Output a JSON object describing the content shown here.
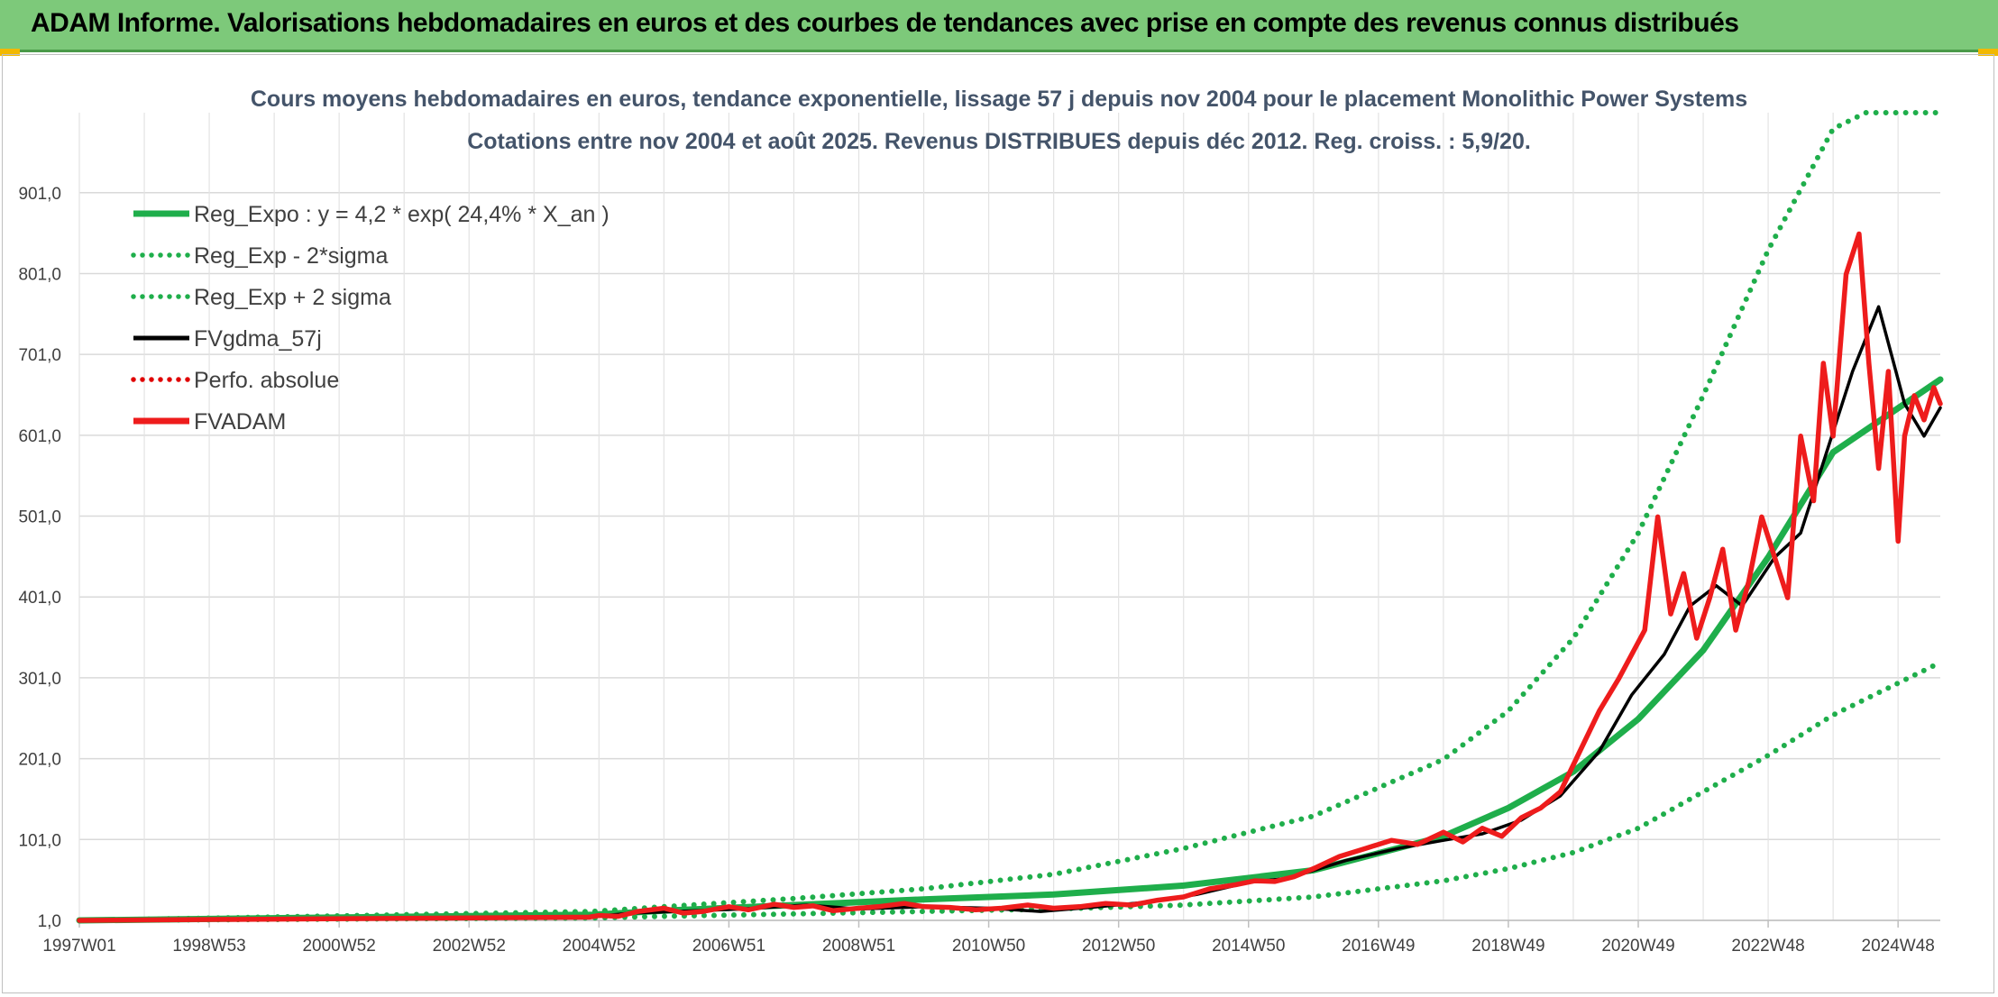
{
  "banner": {
    "title": "ADAM Informe. Valorisations hebdomadaires en euros et des courbes de tendances avec prise en compte des revenus connus distribués",
    "background": "#7dc97a"
  },
  "chart_data": {
    "type": "line",
    "title": "Cours moyens hebdomadaires en euros, tendance exponentielle, lissage 57 j depuis nov 2004 pour le placement Monolithic Power Systems",
    "subtitle": "Cotations entre nov 2004 et août 2025. Revenus DISTRIBUES depuis déc 2012. Reg. croiss. : 5,9/20.",
    "x_ticks": [
      "1997W01",
      "1998W53",
      "2000W52",
      "2002W52",
      "2004W52",
      "2006W51",
      "2008W51",
      "2010W50",
      "2012W50",
      "2014W50",
      "2016W49",
      "2018W49",
      "2020W49",
      "2022W48",
      "2024W48"
    ],
    "x_range": [
      1997.0,
      2025.65
    ],
    "y_ticks": [
      "1,0",
      "101,0",
      "201,0",
      "301,0",
      "401,0",
      "501,0",
      "601,0",
      "701,0",
      "801,0",
      "901,0"
    ],
    "ylim": [
      1,
      1000
    ],
    "grid": true,
    "legend_position": "top-left",
    "legend": [
      {
        "label": "Reg_Expo : y = 4,2 * exp( 24,4% *  X_an )",
        "color": "#1fae4b",
        "style": "solid"
      },
      {
        "label": "Reg_Exp - 2*sigma",
        "color": "#1fae4b",
        "style": "dotted"
      },
      {
        "label": "Reg_Exp + 2 sigma",
        "color": "#1fae4b",
        "style": "dotted"
      },
      {
        "label": "FVgdma_57j",
        "color": "#000000",
        "style": "solid"
      },
      {
        "label": "Perfo. absolue",
        "color": "#e00000",
        "style": "dotted"
      },
      {
        "label": "FVADAM",
        "color": "#ee1c1c",
        "style": "solid"
      }
    ],
    "series": [
      {
        "name": "Reg_Expo : y = 4,2 * exp( 24,4% *  X_an )",
        "x": [
          1997.0,
          2004.9,
          2006,
          2008,
          2010,
          2012,
          2014,
          2016,
          2018,
          2019,
          2020,
          2021,
          2022,
          2023,
          2024,
          2025.65
        ],
        "values": [
          1,
          8,
          13,
          20,
          27,
          33,
          44,
          63,
          105,
          140,
          185,
          250,
          335,
          450,
          580,
          670
        ]
      },
      {
        "name": "Reg_Exp - 2*sigma",
        "x": [
          1997.0,
          2004.9,
          2006,
          2008,
          2010,
          2012,
          2014,
          2016,
          2018,
          2019,
          2020,
          2021,
          2022,
          2023,
          2024,
          2025.65
        ],
        "values": [
          1,
          4,
          6,
          9,
          12,
          15,
          20,
          30,
          50,
          65,
          85,
          115,
          160,
          205,
          255,
          320
        ]
      },
      {
        "name": "Reg_Exp + 2 sigma",
        "x": [
          1997.0,
          2004.9,
          2006,
          2008,
          2010,
          2012,
          2014,
          2016,
          2018,
          2019,
          2020,
          2021,
          2022,
          2023,
          2024,
          2024.5,
          2025.65
        ],
        "values": [
          1,
          12,
          18,
          28,
          40,
          58,
          90,
          130,
          200,
          260,
          350,
          480,
          650,
          830,
          980,
          1000,
          1000
        ]
      },
      {
        "name": "FVgdma_57j",
        "x": [
          1997.0,
          2004.85,
          2005.5,
          2006.2,
          2007.2,
          2008.2,
          2009.0,
          2010.0,
          2011.0,
          2011.8,
          2012.7,
          2013.5,
          2014.2,
          2015.0,
          2015.6,
          2016.5,
          2017.3,
          2018.0,
          2018.6,
          2019.2,
          2019.8,
          2020.4,
          2020.9,
          2021.4,
          2021.8,
          2022.2,
          2022.6,
          2023.1,
          2023.5,
          2023.9,
          2024.3,
          2024.7,
          2025.1,
          2025.4,
          2025.65
        ],
        "values": [
          1,
          5,
          10,
          12,
          15,
          20,
          15,
          18,
          16,
          12,
          18,
          24,
          33,
          48,
          53,
          75,
          90,
          100,
          108,
          125,
          155,
          210,
          280,
          330,
          390,
          415,
          390,
          450,
          480,
          580,
          680,
          760,
          640,
          600,
          635
        ]
      },
      {
        "name": "FVADAM",
        "x": [
          1997.0,
          2004.85,
          2005.0,
          2005.3,
          2005.6,
          2006.0,
          2006.3,
          2006.6,
          2007.0,
          2007.3,
          2007.7,
          2008.0,
          2008.3,
          2008.6,
          2009.0,
          2009.3,
          2009.7,
          2010.0,
          2010.4,
          2010.8,
          2011.2,
          2011.6,
          2012.0,
          2012.4,
          2012.8,
          2013.2,
          2013.6,
          2014.0,
          2014.4,
          2014.8,
          2015.1,
          2015.4,
          2015.7,
          2016.0,
          2016.4,
          2016.8,
          2017.2,
          2017.6,
          2018.0,
          2018.3,
          2018.6,
          2018.9,
          2019.2,
          2019.5,
          2019.8,
          2020.1,
          2020.4,
          2020.7,
          2020.9,
          2021.1,
          2021.3,
          2021.5,
          2021.7,
          2021.9,
          2022.1,
          2022.3,
          2022.5,
          2022.7,
          2022.9,
          2023.1,
          2023.3,
          2023.5,
          2023.7,
          2023.85,
          2024.0,
          2024.2,
          2024.4,
          2024.55,
          2024.7,
          2024.85,
          2025.0,
          2025.1,
          2025.25,
          2025.4,
          2025.55,
          2025.65
        ],
        "values": [
          1,
          5,
          7,
          6,
          12,
          16,
          10,
          12,
          18,
          14,
          21,
          17,
          19,
          13,
          16,
          18,
          22,
          18,
          17,
          14,
          16,
          20,
          16,
          18,
          22,
          20,
          26,
          30,
          40,
          45,
          50,
          49,
          55,
          65,
          80,
          90,
          100,
          95,
          110,
          98,
          115,
          105,
          128,
          140,
          160,
          210,
          260,
          300,
          330,
          360,
          500,
          380,
          430,
          350,
          400,
          460,
          360,
          420,
          500,
          450,
          400,
          600,
          520,
          690,
          600,
          800,
          850,
          690,
          560,
          680,
          470,
          600,
          650,
          620,
          660,
          640
        ]
      }
    ]
  }
}
